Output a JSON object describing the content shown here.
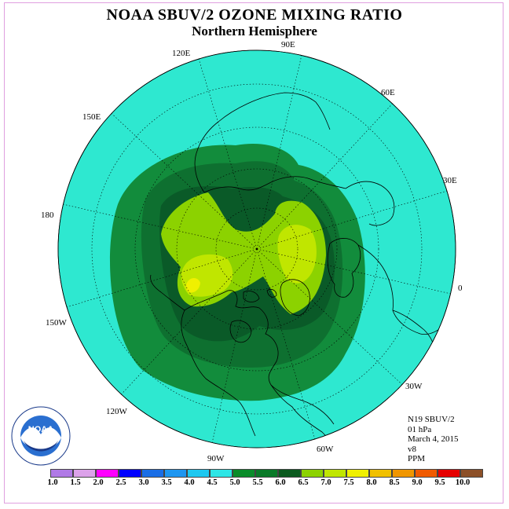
{
  "title": "NOAA SBUV/2 OZONE MIXING RATIO",
  "subtitle": "Northern Hemisphere",
  "longitude_labels": [
    "90E",
    "60E",
    "30E",
    "0",
    "30W",
    "60W",
    "90W",
    "120W",
    "150W",
    "180",
    "150E",
    "120E"
  ],
  "info": {
    "instrument": "N19 SBUV/2",
    "level": "01 hPa",
    "date": "March 4, 2015",
    "version": "v8",
    "units": "PPM"
  },
  "legend": {
    "ticks": [
      "1.0",
      "1.5",
      "2.0",
      "2.5",
      "3.0",
      "3.5",
      "4.0",
      "4.5",
      "5.0",
      "5.5",
      "6.0",
      "6.5",
      "7.0",
      "7.5",
      "8.0",
      "8.5",
      "9.0",
      "9.5",
      "10.0"
    ],
    "colors": [
      "#b07ae6",
      "#dca2ea",
      "#ff00ff",
      "#0000ff",
      "#1a6ee6",
      "#1e96f0",
      "#1ec8f0",
      "#2ee6e6",
      "#0a8c2a",
      "#0a7a28",
      "#0a5a1e",
      "#8cd200",
      "#c0e600",
      "#f0f000",
      "#f0c000",
      "#f09600",
      "#f05a00",
      "#e60000",
      "#8c5028"
    ]
  },
  "map_colors": {
    "background": "#2ee8d0",
    "level_5_0": "#128c3c",
    "level_5_5": "#0e7030",
    "level_6_0": "#0a5a28",
    "level_6_5": "#8cd200",
    "level_7_0": "#c0e600",
    "level_7_5": "#f0f000"
  },
  "logo_text": "NOAA"
}
